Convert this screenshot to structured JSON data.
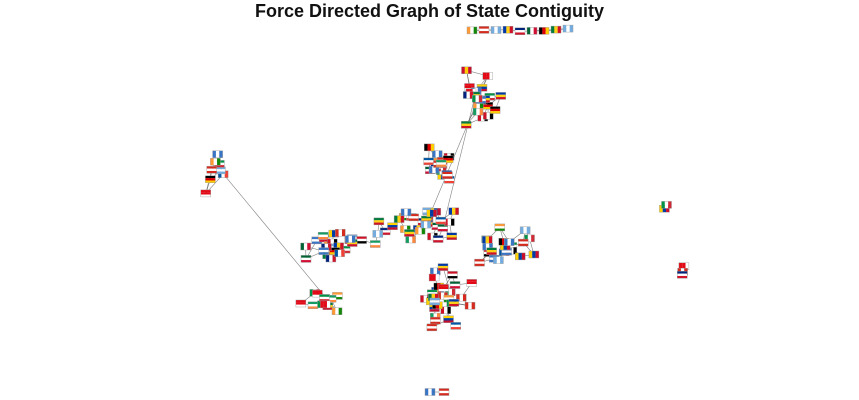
{
  "title": "Force Directed Graph of State Contiguity",
  "graph": {
    "node_count": 185,
    "flag_palettes": [
      [
        "#d52b1e",
        "#ffffff",
        "#d52b1e"
      ],
      [
        "#009246",
        "#ffffff",
        "#ce2b37"
      ],
      [
        "#000000",
        "#dd0000",
        "#ffce00"
      ],
      [
        "#0055a4",
        "#ffffff",
        "#ef4135"
      ],
      [
        "#007a3d",
        "#fcd116",
        "#ce1126"
      ],
      [
        "#3a75c4",
        "#ffffff",
        "#3a75c4"
      ],
      [
        "#ce1126",
        "#ffffff",
        "#000000"
      ],
      [
        "#ff9933",
        "#ffffff",
        "#138808"
      ],
      [
        "#c8102e",
        "#ffcd00",
        "#c8102e"
      ],
      [
        "#00247d",
        "#ffffff",
        "#cf142b"
      ],
      [
        "#169b62",
        "#ffffff",
        "#ff883e"
      ],
      [
        "#0038a8",
        "#fcd116",
        "#ce1126"
      ],
      [
        "#74acdf",
        "#ffffff",
        "#74acdf"
      ],
      [
        "#ffd100",
        "#003da5",
        "#c8102e"
      ],
      [
        "#006233",
        "#ffffff",
        "#d21034"
      ],
      [
        "#e30a17",
        "#e30a17",
        "#ffffff"
      ]
    ],
    "colors": {
      "link": "#555555",
      "title": "#111111"
    }
  }
}
